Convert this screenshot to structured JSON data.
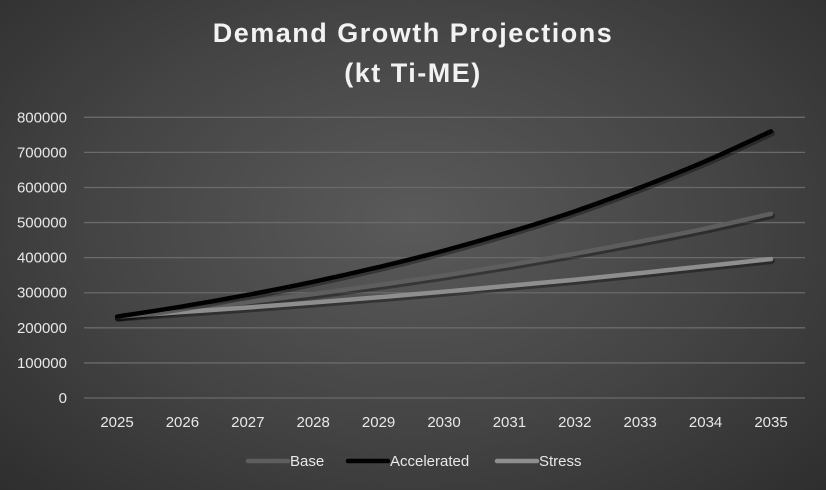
{
  "chart_data": {
    "type": "line",
    "title": "Demand Growth Projections",
    "subtitle": "(kt Ti-ME)",
    "xlabel": "",
    "ylabel": "",
    "x": [
      "2025",
      "2026",
      "2027",
      "2028",
      "2029",
      "2030",
      "2031",
      "2032",
      "2033",
      "2034",
      "2035"
    ],
    "ylim": [
      0,
      800000
    ],
    "yticks": [
      0,
      100000,
      200000,
      300000,
      400000,
      500000,
      600000,
      700000,
      800000
    ],
    "grid": true,
    "legend": "bottom",
    "series": [
      {
        "name": "Base",
        "color": "#5e5e5e",
        "values": [
          232000,
          252000,
          273000,
          296000,
          322000,
          349000,
          379000,
          411000,
          446000,
          483000,
          525000
        ]
      },
      {
        "name": "Accelerated",
        "color": "#000000",
        "values": [
          232000,
          261000,
          294000,
          331000,
          373000,
          420000,
          473000,
          532000,
          600000,
          675000,
          760000
        ]
      },
      {
        "name": "Stress",
        "color": "#8e8e8e",
        "values": [
          232000,
          245000,
          258000,
          272000,
          287000,
          303000,
          320000,
          337000,
          356000,
          376000,
          396000
        ]
      }
    ]
  }
}
